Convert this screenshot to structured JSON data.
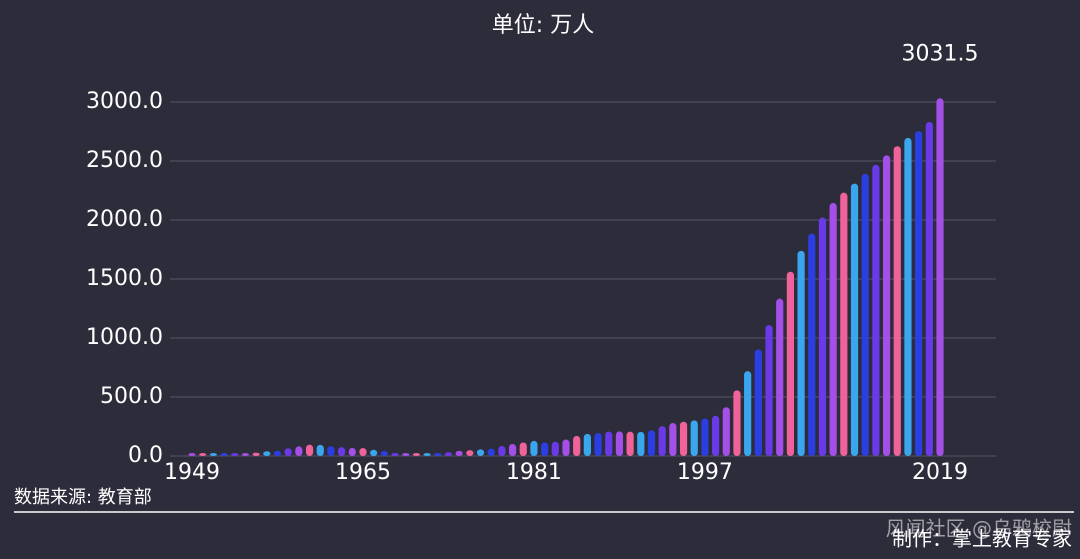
{
  "chart_data": {
    "type": "bar",
    "title": "单位: 万人",
    "x": [
      1949,
      1950,
      1951,
      1952,
      1953,
      1954,
      1955,
      1956,
      1957,
      1958,
      1959,
      1960,
      1961,
      1962,
      1963,
      1964,
      1965,
      1966,
      1967,
      1968,
      1969,
      1970,
      1971,
      1972,
      1973,
      1974,
      1975,
      1976,
      1977,
      1978,
      1979,
      1980,
      1981,
      1982,
      1983,
      1984,
      1985,
      1986,
      1987,
      1988,
      1989,
      1990,
      1991,
      1992,
      1993,
      1994,
      1995,
      1996,
      1997,
      1998,
      1999,
      2000,
      2001,
      2002,
      2003,
      2004,
      2005,
      2006,
      2007,
      2008,
      2009,
      2010,
      2011,
      2012,
      2013,
      2014,
      2015,
      2016,
      2017,
      2018,
      2019
    ],
    "values": [
      11.7,
      13.7,
      15.3,
      19.1,
      21.2,
      25.3,
      28.8,
      40.3,
      44.1,
      66.0,
      81.2,
      96.2,
      94.7,
      83.0,
      75.0,
      68.5,
      67.4,
      53.4,
      40.9,
      25.9,
      10.9,
      4.8,
      8.3,
      19.4,
      31.4,
      43.0,
      50.1,
      56.5,
      62.5,
      85.6,
      102.0,
      114.4,
      127.9,
      115.4,
      120.7,
      139.6,
      170.3,
      188.0,
      195.9,
      206.6,
      208.2,
      206.3,
      204.4,
      218.4,
      253.6,
      279.9,
      290.6,
      302.1,
      317.4,
      340.9,
      413.4,
      556.1,
      719.1,
      903.4,
      1108.6,
      1333.5,
      1561.8,
      1738.8,
      1884.9,
      2021.0,
      2144.7,
      2231.8,
      2308.5,
      2391.3,
      2468.1,
      2547.7,
      2625.3,
      2695.8,
      2753.6,
      2831.0,
      3031.5
    ],
    "colors": [
      "#a34fe8",
      "#f0629a",
      "#3aa6ee",
      "#2a3ee2",
      "#6a3ae8"
    ],
    "xlim": [
      1949,
      2019
    ],
    "xticks": [
      1949,
      1965,
      1981,
      1997,
      2019
    ],
    "ylim": [
      0,
      3000
    ],
    "yticks": [
      {
        "value": 0,
        "label": "0.0"
      },
      {
        "value": 500,
        "label": "500.0"
      },
      {
        "value": 1000,
        "label": "1000.0"
      },
      {
        "value": 1500,
        "label": "1500.0"
      },
      {
        "value": 2000,
        "label": "2000.0"
      },
      {
        "value": 2500,
        "label": "2500.0"
      },
      {
        "value": 3000,
        "label": "3000.0"
      }
    ],
    "grid": true,
    "source": "数据来源: 教育部",
    "credits": [
      "风闻社区 @乌鸦校尉",
      "制作：掌上教育专家"
    ]
  }
}
